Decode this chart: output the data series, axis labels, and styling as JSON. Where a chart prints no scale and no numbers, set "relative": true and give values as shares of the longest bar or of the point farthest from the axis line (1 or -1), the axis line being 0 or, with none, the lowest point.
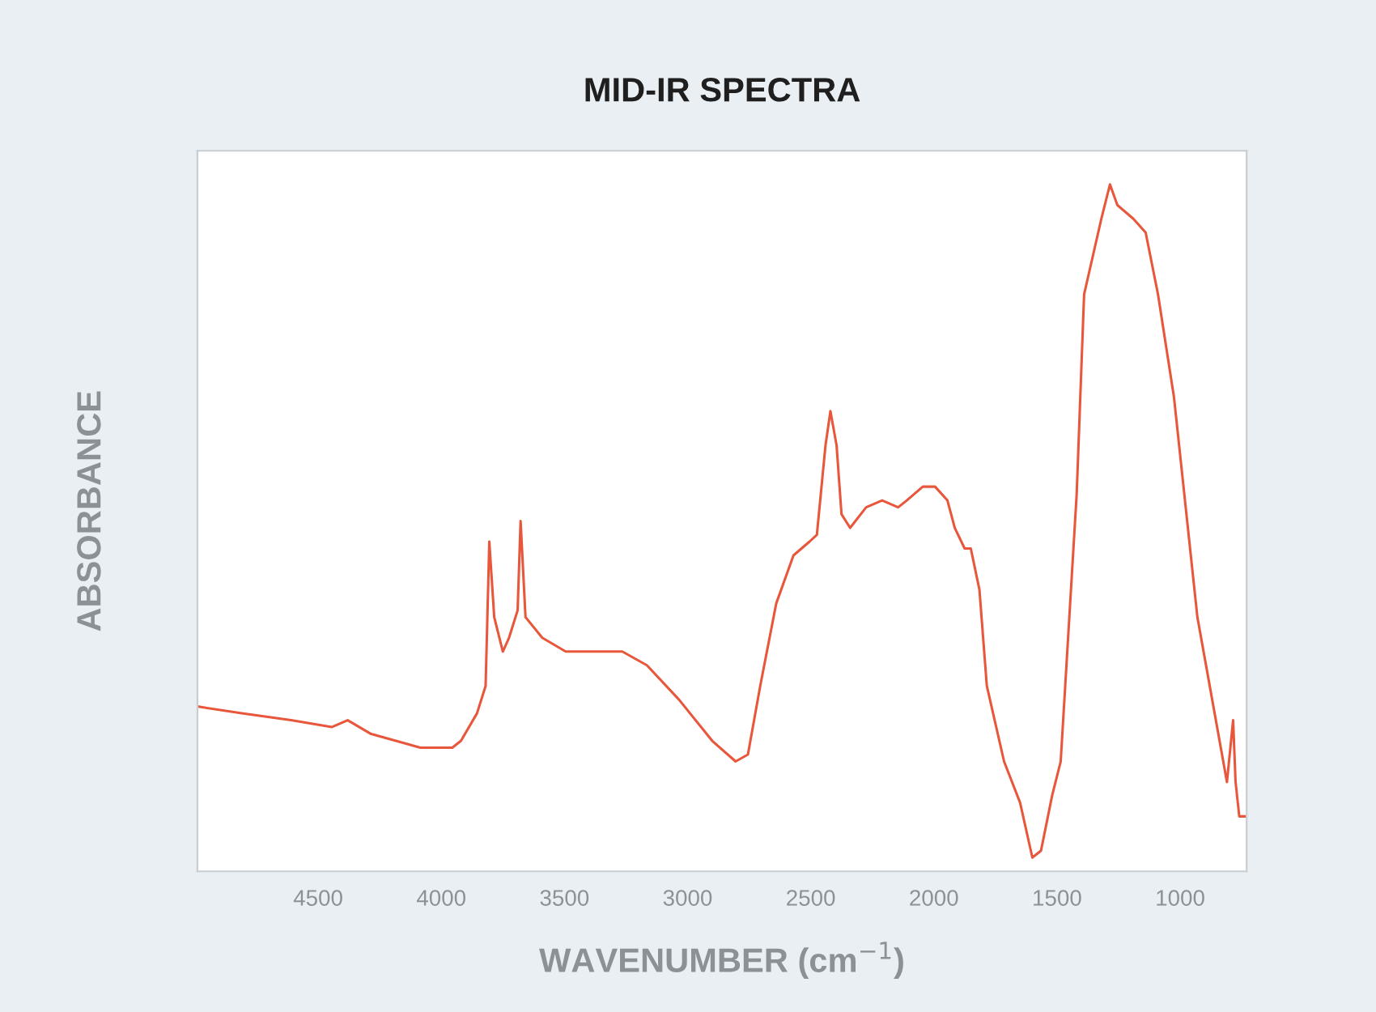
{
  "chart_data": {
    "type": "line",
    "title": "MID-IR SPECTRA",
    "xlabel": "WAVENUMBER (cm$^{−1}$)",
    "ylabel": "ABSORBANCE",
    "relative": true,
    "xlim": [
      4990,
      730
    ],
    "xticks": [
      4500,
      4000,
      3500,
      3000,
      2500,
      2000,
      1500,
      1000
    ],
    "grid": false,
    "legend": false,
    "series": [
      {
        "color": "#e8573c",
        "x": [
          4990,
          4810,
          4610,
          4445,
          4380,
          4285,
          4085,
          3955,
          3920,
          3855,
          3820,
          3805,
          3785,
          3750,
          3725,
          3690,
          3678,
          3658,
          3590,
          3495,
          3360,
          3265,
          3165,
          3035,
          2900,
          2805,
          2755,
          2705,
          2640,
          2570,
          2505,
          2475,
          2440,
          2420,
          2395,
          2375,
          2340,
          2275,
          2210,
          2145,
          2110,
          2045,
          1995,
          1945,
          1915,
          1875,
          1850,
          1815,
          1785,
          1715,
          1650,
          1600,
          1565,
          1520,
          1485,
          1420,
          1390,
          1320,
          1285,
          1255,
          1190,
          1140,
          1090,
          1025,
          930,
          860,
          810,
          785,
          775,
          760,
          730
        ],
        "values": [
          0.24,
          0.23,
          0.22,
          0.21,
          0.22,
          0.2,
          0.18,
          0.18,
          0.19,
          0.23,
          0.27,
          0.48,
          0.37,
          0.32,
          0.34,
          0.38,
          0.51,
          0.37,
          0.34,
          0.32,
          0.32,
          0.32,
          0.3,
          0.25,
          0.19,
          0.16,
          0.17,
          0.27,
          0.39,
          0.46,
          0.48,
          0.49,
          0.62,
          0.67,
          0.62,
          0.52,
          0.5,
          0.53,
          0.54,
          0.53,
          0.54,
          0.56,
          0.56,
          0.54,
          0.5,
          0.47,
          0.47,
          0.41,
          0.27,
          0.16,
          0.1,
          0.02,
          0.03,
          0.11,
          0.16,
          0.55,
          0.84,
          0.95,
          1,
          0.97,
          0.95,
          0.93,
          0.84,
          0.69,
          0.37,
          0.23,
          0.13,
          0.22,
          0.13,
          0.08,
          0.08
        ]
      }
    ]
  }
}
